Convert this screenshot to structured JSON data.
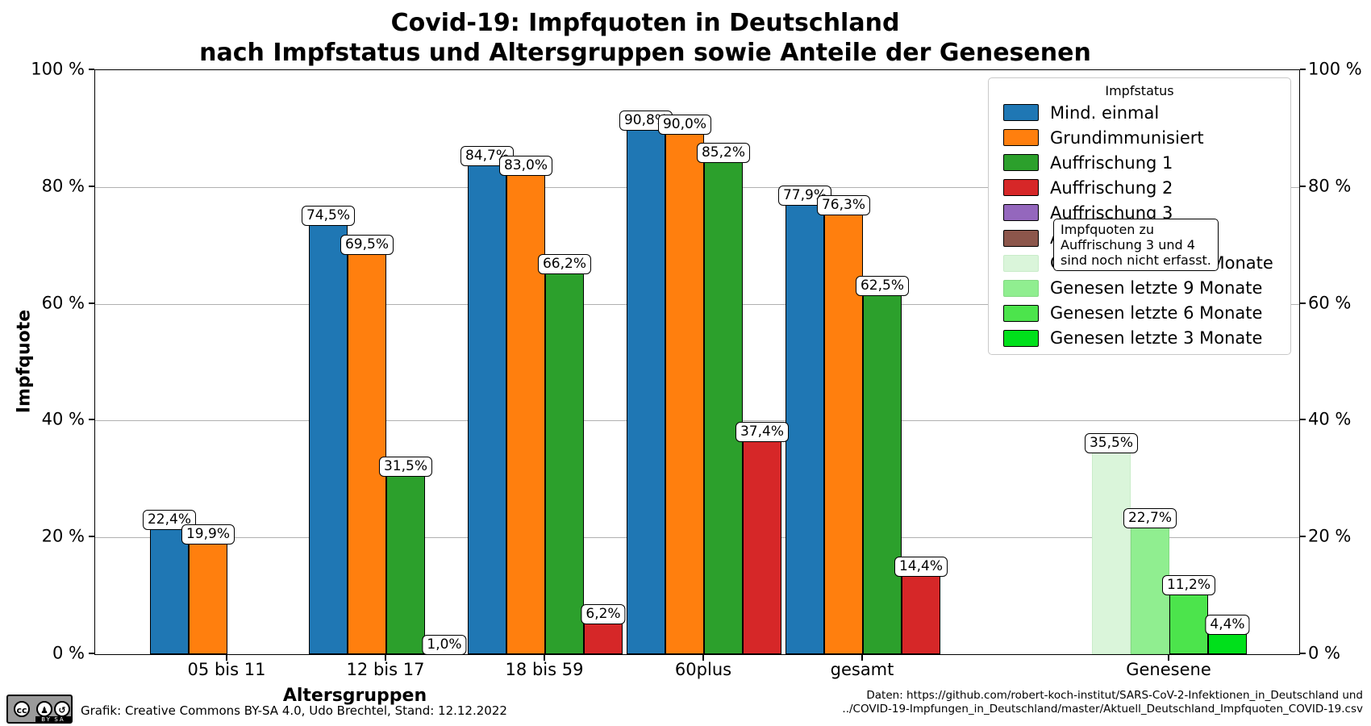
{
  "header": {
    "title_line1": "Covid-19: Impfquoten in Deutschland",
    "title_line2": "nach Impfstatus und Altersgruppen sowie Anteile der Genesenen"
  },
  "chart_data": {
    "type": "bar",
    "title": "Covid-19: Impfquoten in Deutschland nach Impfstatus und Altersgruppen sowie Anteile der Genesenen",
    "xlabel": "Altersgruppen",
    "ylabel": "Impfquote",
    "ylim": [
      0,
      100
    ],
    "grid": true,
    "legend_title": "Impfstatus",
    "legend_position": "upper right",
    "yticks": [
      {
        "value": 0,
        "label": "0 %"
      },
      {
        "value": 20,
        "label": "20 %"
      },
      {
        "value": 40,
        "label": "40 %"
      },
      {
        "value": 60,
        "label": "60 %"
      },
      {
        "value": 80,
        "label": "80 %"
      },
      {
        "value": 100,
        "label": "100 %"
      }
    ],
    "categories": [
      "05 bis 11",
      "12 bis 17",
      "18 bis 59",
      "60plus",
      "gesamt",
      "Genesene"
    ],
    "series": [
      {
        "name": "Mind. einmal",
        "color": "#1f77b4",
        "edge": "#000000",
        "slot": 0,
        "values": [
          22.4,
          74.5,
          84.7,
          90.8,
          77.9,
          null
        ]
      },
      {
        "name": "Grundimmunisiert",
        "color": "#ff7f0e",
        "edge": "#000000",
        "slot": 1,
        "values": [
          19.9,
          69.5,
          83.0,
          90.0,
          76.3,
          null
        ]
      },
      {
        "name": "Auffrischung 1",
        "color": "#2ca02c",
        "edge": "#000000",
        "slot": 2,
        "values": [
          null,
          31.5,
          66.2,
          85.2,
          62.5,
          null
        ]
      },
      {
        "name": "Auffrischung 2",
        "color": "#d62728",
        "edge": "#000000",
        "slot": 3,
        "values": [
          null,
          1.0,
          6.2,
          37.4,
          14.4,
          null
        ]
      },
      {
        "name": "Auffrischung 3",
        "color": "#9467bd",
        "edge": "#000000",
        "slot": null,
        "values": [
          null,
          null,
          null,
          null,
          null,
          null
        ]
      },
      {
        "name": "Auffrischung 4",
        "color": "#8c564b",
        "edge": "#000000",
        "slot": null,
        "values": [
          null,
          null,
          null,
          null,
          null,
          null
        ]
      },
      {
        "name": "Genesen letzte 12 Monate",
        "color": "#daf5da",
        "edge": "#c9ecc9",
        "slot": 0,
        "values": [
          null,
          null,
          null,
          null,
          null,
          35.5
        ]
      },
      {
        "name": "Genesen letzte 9 Monate",
        "color": "#90ee90",
        "edge": "#82da82",
        "slot": 1,
        "values": [
          null,
          null,
          null,
          null,
          null,
          22.7
        ]
      },
      {
        "name": "Genesen letzte 6 Monate",
        "color": "#4ce44c",
        "edge": "#000000",
        "slot": 2,
        "values": [
          null,
          null,
          null,
          null,
          null,
          11.2
        ]
      },
      {
        "name": "Genesen letzte 3 Monate",
        "color": "#00e01b",
        "edge": "#000000",
        "slot": 3,
        "values": [
          null,
          null,
          null,
          null,
          null,
          4.4
        ]
      }
    ],
    "bar_value_labels": {
      "decimal_separator": ",",
      "suffix": "%",
      "examples": [
        "22,4%",
        "19,9%",
        "74,5%",
        "69,5%",
        "31,5%",
        "1,0%",
        "84,7%",
        "83,0%",
        "66,2%",
        "6,2%",
        "90,8%",
        "90,0%",
        "85,2%",
        "37,4%",
        "77,9%",
        "76,3%",
        "62,5%",
        "14,4%",
        "35,5%",
        "22,7%",
        "11,2%",
        "4,4%"
      ]
    },
    "annotation": {
      "lines": [
        "Impfquoten zu",
        "Auffrischung 3 und 4",
        "sind noch nicht erfasst."
      ]
    }
  },
  "footer": {
    "license": "Grafik: Creative Commons BY-SA 4.0, Udo Brechtel, Stand: 12.12.2022",
    "source_line1": "Daten: https://github.com/robert-koch-institut/SARS-CoV-2-Infektionen_in_Deutschland und",
    "source_line2": "../COVID-19-Impfungen_in_Deutschland/master/Aktuell_Deutschland_Impfquoten_COVID-19.csv",
    "badge": {
      "cc": "cc",
      "by": "BY",
      "sa": "SA"
    }
  }
}
